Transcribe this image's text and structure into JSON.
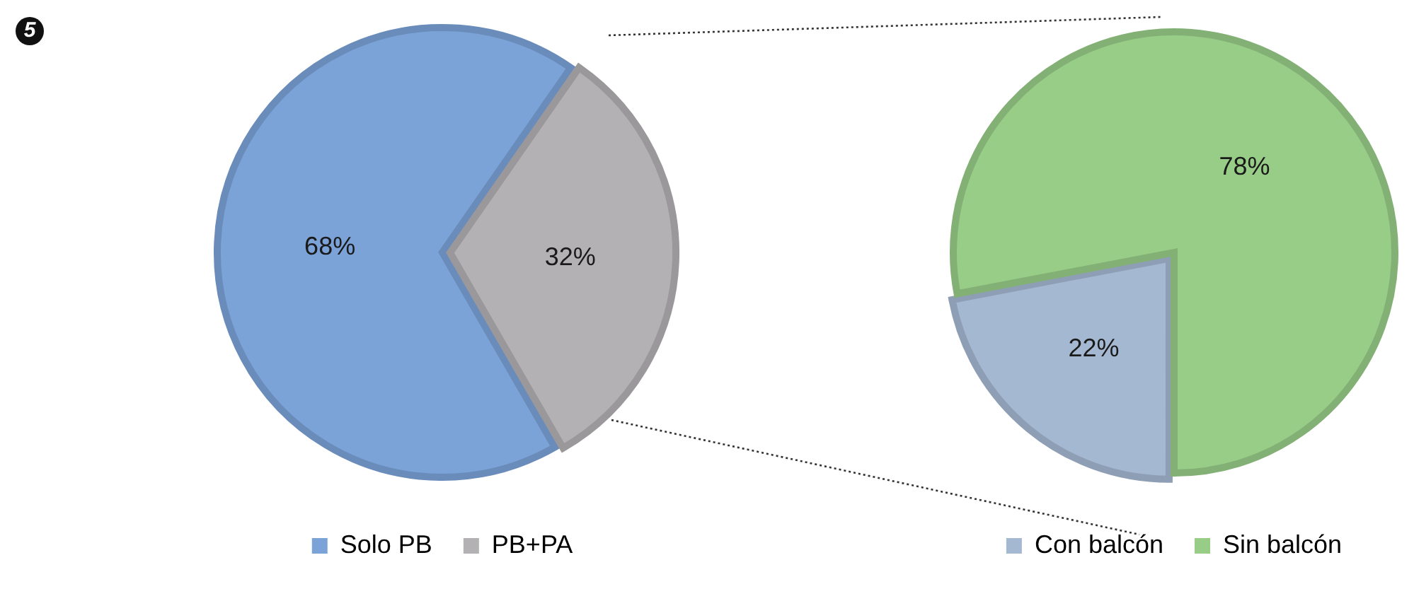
{
  "chart_data": [
    {
      "type": "pie",
      "categories": [
        "Solo PB",
        "PB+PA"
      ],
      "values": [
        68,
        32
      ],
      "colors": [
        "#7ba3d8",
        "#b4b1b4"
      ],
      "value_labels": [
        "68%",
        "32%"
      ],
      "legend": "bottom",
      "annotations": [
        "5"
      ]
    },
    {
      "type": "pie",
      "categories": [
        "Con balcón",
        "Sin balcón"
      ],
      "values": [
        22,
        78
      ],
      "colors": [
        "#a4b8d2",
        "#98cd88"
      ],
      "value_labels": [
        "22%",
        "78%"
      ],
      "legend": "bottom"
    }
  ]
}
